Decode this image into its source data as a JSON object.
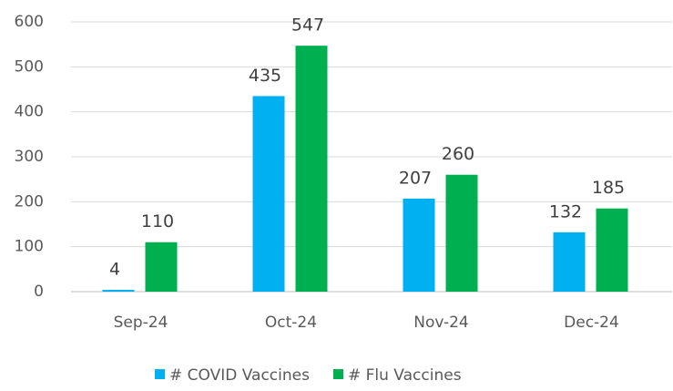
{
  "chart_data": {
    "type": "bar",
    "categories": [
      "Sep-24",
      "Oct-24",
      "Nov-24",
      "Dec-24"
    ],
    "series": [
      {
        "name": "# COVID Vaccines",
        "color": "#00b0f0",
        "values": [
          4,
          435,
          207,
          132
        ]
      },
      {
        "name": "# Flu Vaccines",
        "color": "#00b050",
        "values": [
          110,
          547,
          260,
          185
        ]
      }
    ],
    "ylim": [
      0,
      600
    ],
    "yticks": [
      0,
      100,
      200,
      300,
      400,
      500,
      600
    ],
    "grid": true,
    "legend": "bottom"
  }
}
